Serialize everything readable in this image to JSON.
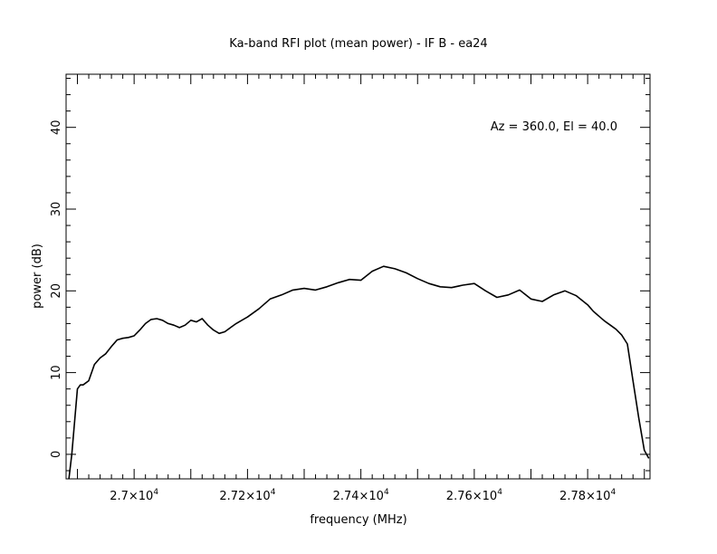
{
  "chart_data": {
    "type": "line",
    "title": "Ka-band RFI plot (mean power) - IF B - ea24",
    "xlabel": "frequency (MHz)",
    "ylabel": "power (dB)",
    "annotation": "Az = 360.0, El = 40.0",
    "xlim": [
      26880,
      27910
    ],
    "ylim": [
      -3,
      46.5
    ],
    "x_ticks": [
      {
        "value": 27000,
        "mantissa": "2.7",
        "exponent": "4"
      },
      {
        "value": 27200,
        "mantissa": "2.72",
        "exponent": "4"
      },
      {
        "value": 27400,
        "mantissa": "2.74",
        "exponent": "4"
      },
      {
        "value": 27600,
        "mantissa": "2.76",
        "exponent": "4"
      },
      {
        "value": 27800,
        "mantissa": "2.78",
        "exponent": "4"
      }
    ],
    "x_tick_times": "×10",
    "y_ticks": [
      0,
      10,
      20,
      30,
      40
    ],
    "series": [
      {
        "color": "#000000",
        "x": [
          26885,
          26890,
          26895,
          26900,
          26905,
          26910,
          26920,
          26930,
          26940,
          26950,
          26960,
          26970,
          26980,
          26990,
          27000,
          27010,
          27020,
          27030,
          27040,
          27050,
          27060,
          27070,
          27080,
          27090,
          27100,
          27110,
          27120,
          27130,
          27140,
          27150,
          27160,
          27170,
          27180,
          27190,
          27200,
          27220,
          27240,
          27260,
          27280,
          27300,
          27320,
          27340,
          27360,
          27380,
          27400,
          27420,
          27440,
          27460,
          27480,
          27500,
          27520,
          27540,
          27560,
          27580,
          27600,
          27620,
          27640,
          27660,
          27680,
          27700,
          27720,
          27740,
          27760,
          27780,
          27800,
          27810,
          27820,
          27830,
          27840,
          27850,
          27860,
          27870,
          27880,
          27890,
          27900,
          27908
        ],
        "y": [
          -3,
          0,
          4,
          8,
          8.5,
          8.5,
          9,
          11,
          11.8,
          12.3,
          13.2,
          14,
          14.2,
          14.3,
          14.5,
          15.2,
          16,
          16.5,
          16.6,
          16.4,
          16,
          15.8,
          15.5,
          15.8,
          16.4,
          16.2,
          16.6,
          15.8,
          15.2,
          14.8,
          15,
          15.5,
          16,
          16.4,
          16.8,
          17.8,
          19,
          19.5,
          20.1,
          20.3,
          20.1,
          20.5,
          21,
          21.4,
          21.3,
          22.4,
          23,
          22.7,
          22.2,
          21.5,
          20.9,
          20.5,
          20.4,
          20.7,
          20.9,
          20,
          19.2,
          19.5,
          20.1,
          19,
          18.7,
          19.5,
          20,
          19.4,
          18.3,
          17.5,
          16.9,
          16.3,
          15.8,
          15.3,
          14.6,
          13.5,
          9,
          4.5,
          0.5,
          -0.5
        ]
      }
    ]
  }
}
